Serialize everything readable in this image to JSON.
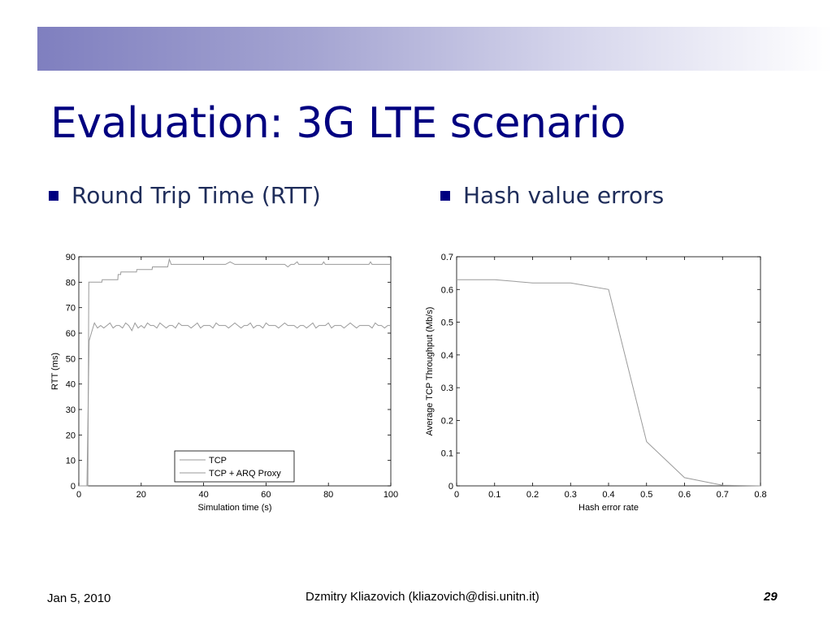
{
  "slide": {
    "title": "Evaluation: 3G LTE scenario",
    "bullets": [
      {
        "label": "Round Trip Time (RTT)"
      },
      {
        "label": "Hash value errors"
      }
    ],
    "footer": {
      "date": "Jan 5, 2010",
      "author": "Dzmitry Kliazovich (kliazovich@disi.unitn.it)",
      "page": "29"
    },
    "colors": {
      "title": "#000080",
      "bullet_marker": "#000080",
      "band_start": "#7f7fbf"
    }
  },
  "chart_data": [
    {
      "type": "line",
      "xlabel": "Simulation time (s)",
      "ylabel": "RTT (ms)",
      "xlim": [
        0,
        100
      ],
      "ylim": [
        0,
        90
      ],
      "xticks": [
        "0",
        "20",
        "40",
        "60",
        "80",
        "100"
      ],
      "yticks": [
        "0",
        "10",
        "20",
        "30",
        "40",
        "50",
        "60",
        "70",
        "80",
        "90"
      ],
      "grid": false,
      "legend": "bottom-center",
      "series": [
        {
          "name": "TCP",
          "x": [
            0,
            2.9,
            3.2,
            7.4,
            7.5,
            12.5,
            12.6,
            13.4,
            13.5,
            18.5,
            18.6,
            23.5,
            23.6,
            28.5,
            29,
            29.6,
            40,
            47,
            48.5,
            50,
            66,
            67,
            68,
            69,
            70,
            70.5,
            71,
            78,
            78.5,
            79,
            83,
            93,
            93.5,
            94,
            100
          ],
          "y": [
            0,
            0,
            80,
            80,
            81,
            81,
            83,
            83,
            84,
            84,
            85,
            85,
            86,
            86,
            89,
            87,
            87,
            87,
            88,
            87,
            87,
            86,
            87,
            87,
            88,
            87,
            87,
            87,
            88,
            87,
            87,
            87,
            88,
            87,
            87
          ]
        },
        {
          "name": "TCP + ARQ Proxy",
          "x": [
            0,
            2.6,
            3.3,
            4,
            5,
            6,
            7,
            8,
            9,
            10,
            11,
            12,
            13,
            14,
            15,
            16,
            17,
            18,
            19,
            20,
            21,
            22,
            23,
            24,
            25,
            26,
            27,
            28,
            29,
            30,
            31,
            32,
            33,
            34,
            35,
            36,
            37,
            38,
            39,
            40,
            41,
            42,
            43,
            44,
            45,
            46,
            47,
            48,
            49,
            50,
            51,
            52,
            53,
            54,
            55,
            56,
            57,
            58,
            59,
            60,
            61,
            62,
            63,
            64,
            65,
            66,
            67,
            68,
            69,
            70,
            71,
            72,
            73,
            74,
            75,
            76,
            77,
            78,
            79,
            80,
            81,
            82,
            83,
            84,
            85,
            86,
            87,
            88,
            89,
            90,
            91,
            92,
            93,
            94,
            95,
            96,
            97,
            98,
            99,
            100
          ],
          "y": [
            0,
            0,
            57,
            60,
            64,
            62,
            63,
            62,
            63,
            64,
            62,
            63,
            63,
            62,
            64,
            63,
            61,
            64,
            62,
            63,
            62,
            64,
            63,
            63,
            62,
            64,
            63,
            62,
            63,
            63,
            62,
            64,
            63,
            63,
            63,
            62,
            63,
            64,
            62,
            63,
            63,
            63,
            62,
            64,
            63,
            63,
            63,
            62,
            63,
            64,
            63,
            62,
            63,
            63,
            64,
            62,
            63,
            63,
            62,
            64,
            63,
            63,
            63,
            62,
            63,
            64,
            63,
            63,
            63,
            62,
            63,
            63,
            62,
            63,
            64,
            62,
            63,
            63,
            63,
            64,
            62,
            63,
            63,
            63,
            62,
            63,
            64,
            63,
            62,
            63,
            63,
            63,
            63,
            62,
            64,
            63,
            63,
            62,
            63,
            63
          ]
        }
      ]
    },
    {
      "type": "line",
      "xlabel": "Hash error rate",
      "ylabel": "Average TCP Throughput (Mb/s)",
      "xlim": [
        0,
        0.8
      ],
      "ylim": [
        0,
        0.7
      ],
      "xticks": [
        "0",
        "0.1",
        "0.2",
        "0.3",
        "0.4",
        "0.5",
        "0.6",
        "0.7",
        "0.8"
      ],
      "yticks": [
        "0",
        "0.1",
        "0.2",
        "0.3",
        "0.4",
        "0.5",
        "0.6",
        "0.7"
      ],
      "grid": false,
      "series": [
        {
          "x": [
            0,
            0.1,
            0.2,
            0.3,
            0.4,
            0.5,
            0.6,
            0.7,
            0.8
          ],
          "y": [
            0.63,
            0.63,
            0.62,
            0.62,
            0.6,
            0.135,
            0.025,
            0.002,
            0
          ]
        }
      ]
    }
  ]
}
